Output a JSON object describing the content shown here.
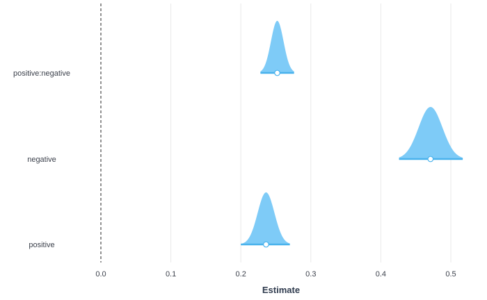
{
  "chart_data": {
    "type": "posterior-interval",
    "xlabel": "Estimate",
    "ylabel": "",
    "xlim": [
      -0.12,
      0.52
    ],
    "x_ticks": [
      0.0,
      0.1,
      0.2,
      0.3,
      0.4,
      0.5
    ],
    "x_tick_labels": [
      "0.0",
      "0.1",
      "0.2",
      "0.3",
      "0.4",
      "0.5"
    ],
    "reference_line": 0.0,
    "grid": "vertical",
    "colors": {
      "fill": "#7ecbf7",
      "interval": "#49b2ec",
      "point_fill": "#ffffff",
      "point_stroke": "#49b2ec",
      "grid": "#e9e9e9",
      "reference": "#222222"
    },
    "parameters": [
      {
        "label": "positive:negative",
        "estimate": 0.252,
        "lower": 0.228,
        "upper": 0.276,
        "sd": 0.009
      },
      {
        "label": "negative",
        "estimate": 0.471,
        "lower": 0.426,
        "upper": 0.517,
        "sd": 0.017
      },
      {
        "label": "positive",
        "estimate": 0.236,
        "lower": 0.2,
        "upper": 0.27,
        "sd": 0.012
      }
    ]
  }
}
